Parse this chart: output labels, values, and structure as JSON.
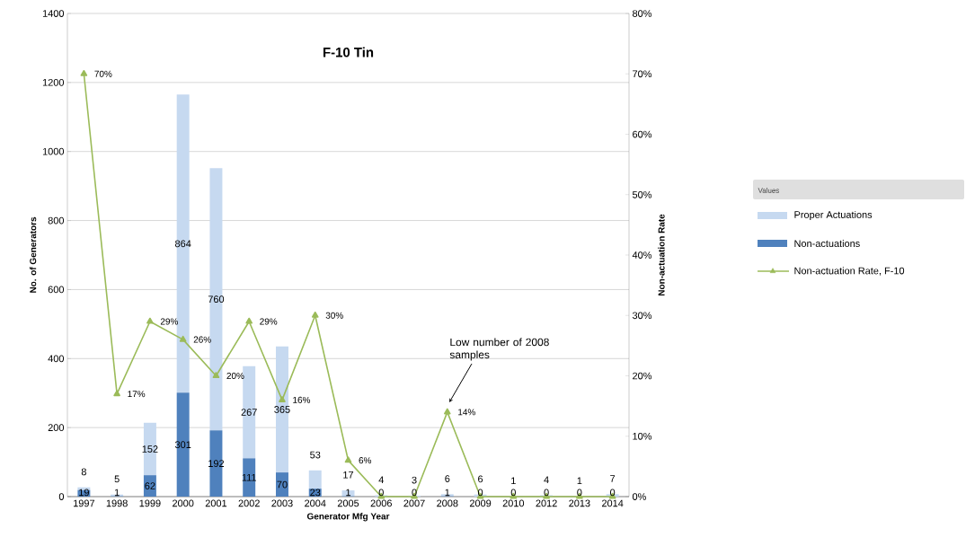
{
  "chart_data": {
    "type": "bar",
    "title": "F-10 Tin",
    "xlabel": "Generator Mfg Year",
    "ylabel": "No. of Generators",
    "y2label": "Non-actuation Rate",
    "legend_title": "Values",
    "legend": "right",
    "grid": "y",
    "stacked": true,
    "categories": [
      "1997",
      "1998",
      "1999",
      "2000",
      "2001",
      "2002",
      "2003",
      "2004",
      "2005",
      "2006",
      "2007",
      "2008",
      "2009",
      "2010",
      "2012",
      "2013",
      "2014"
    ],
    "ylim": [
      0,
      1400
    ],
    "yticks": [
      0,
      200,
      400,
      600,
      800,
      1000,
      1200,
      1400
    ],
    "y2lim": [
      0,
      80
    ],
    "y2ticks": [
      {
        "value": 0,
        "label": "0%"
      },
      {
        "value": 10,
        "label": "10%"
      },
      {
        "value": 20,
        "label": "20%"
      },
      {
        "value": 30,
        "label": "30%"
      },
      {
        "value": 40,
        "label": "40%"
      },
      {
        "value": 50,
        "label": "50%"
      },
      {
        "value": 60,
        "label": "60%"
      },
      {
        "value": 70,
        "label": "70%"
      },
      {
        "value": 80,
        "label": "80%"
      }
    ],
    "series": [
      {
        "name": "Non-actuations",
        "color": "#4f81bd",
        "values": [
          19,
          1,
          62,
          301,
          192,
          111,
          70,
          23,
          1,
          0,
          0,
          1,
          0,
          0,
          0,
          0,
          0
        ],
        "value_labels": [
          "19",
          "1",
          "62",
          "301",
          "192",
          "111",
          "70",
          "23",
          "1",
          "0",
          "0",
          "1",
          "0",
          "0",
          "0",
          "0",
          "0"
        ]
      },
      {
        "name": "Proper Actuations",
        "color": "#c6d9f0",
        "values": [
          8,
          5,
          152,
          864,
          760,
          267,
          365,
          53,
          17,
          4,
          3,
          6,
          6,
          1,
          4,
          1,
          7
        ],
        "value_labels": [
          "8",
          "5",
          "152",
          "864",
          "760",
          "267",
          "365",
          "53",
          "17",
          "4",
          "3",
          "6",
          "6",
          "1",
          "4",
          "1",
          "7"
        ]
      },
      {
        "name": "Non-actuation Rate, F-10",
        "type": "line",
        "axis": "y2",
        "color": "#9bbb59",
        "marker": "triangle",
        "values": [
          70,
          17,
          29,
          26,
          20,
          29,
          16,
          30,
          6,
          0,
          0,
          14,
          0,
          0,
          0,
          0,
          0
        ],
        "value_labels": [
          "70%",
          "17%",
          "29%",
          "26%",
          "20%",
          "29%",
          "16%",
          "30%",
          "6%",
          null,
          null,
          "14%",
          null,
          null,
          null,
          null,
          null
        ]
      }
    ],
    "annotations": [
      "Low number of 2008 samples"
    ]
  }
}
